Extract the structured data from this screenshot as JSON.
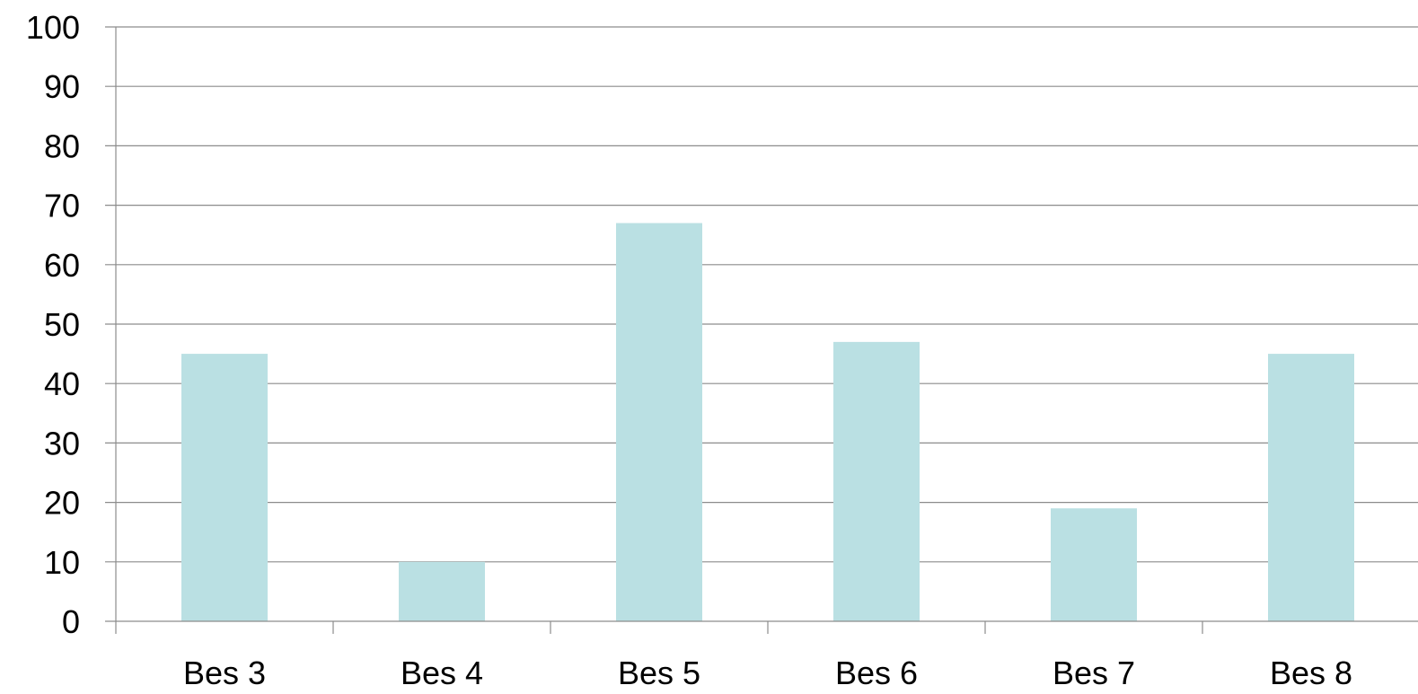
{
  "chart_data": {
    "type": "bar",
    "title": "",
    "xlabel": "",
    "ylabel": "",
    "categories": [
      "Bes 3",
      "Bes 4",
      "Bes 5",
      "Bes 6",
      "Bes 7",
      "Bes 8"
    ],
    "values": [
      45,
      10,
      67,
      47,
      19,
      45
    ],
    "ylim": [
      0,
      100
    ],
    "yticks": [
      0,
      10,
      20,
      30,
      40,
      50,
      60,
      70,
      80,
      90,
      100
    ],
    "ytick_labels": [
      "0",
      "10",
      "20",
      "30",
      "40",
      "50",
      "60",
      "70",
      "80",
      "90",
      "100"
    ],
    "grid": true,
    "legend": "none",
    "bar_color": "#bae0e3",
    "grid_color": "#8c8c8c"
  }
}
